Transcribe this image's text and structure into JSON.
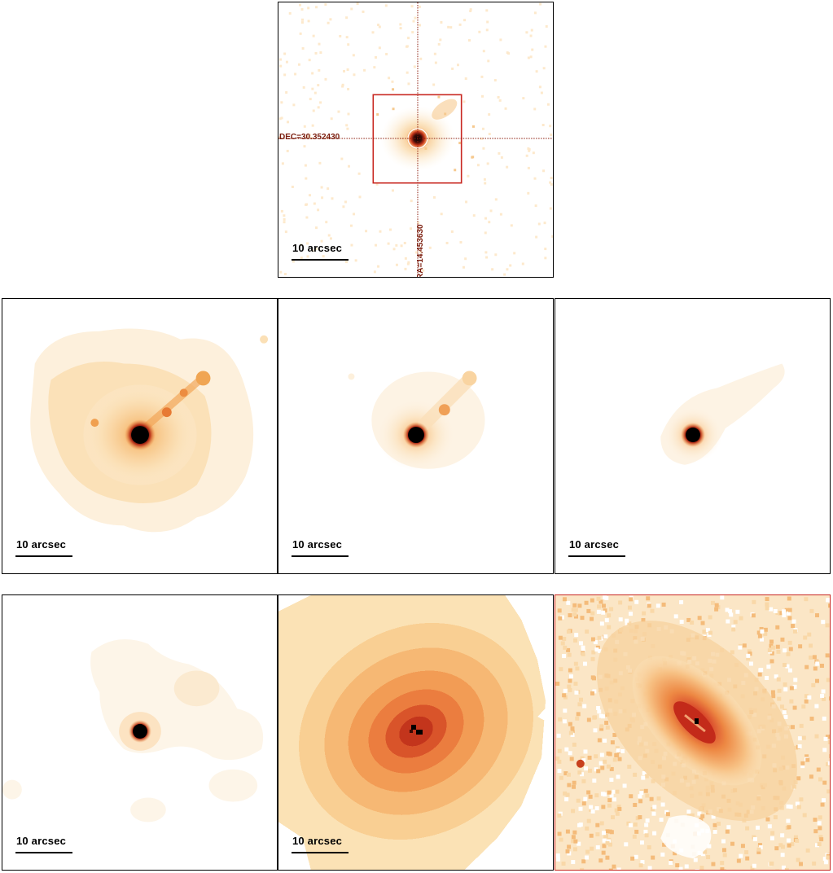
{
  "panels": {
    "top": {
      "scale_label": "10 arcsec",
      "dec_label": "DEC=30.352430",
      "ra_label": "RA=14.453630"
    },
    "mid_left": {
      "scale_label": "10 arcsec"
    },
    "mid_center": {
      "scale_label": "10 arcsec"
    },
    "mid_right": {
      "scale_label": "10 arcsec"
    },
    "bot_left": {
      "scale_label": "10 arcsec"
    },
    "bot_center": {
      "scale_label": "10 arcsec"
    },
    "bot_right": {}
  },
  "colors": {
    "frame": "#000000",
    "crosshair": "#8b1a0a",
    "box": "#c8261f",
    "heat_pale": "#fbe3b4",
    "heat_mid": "#f2a04a",
    "heat_deep": "#d0401a",
    "heat_core": "#000000"
  }
}
